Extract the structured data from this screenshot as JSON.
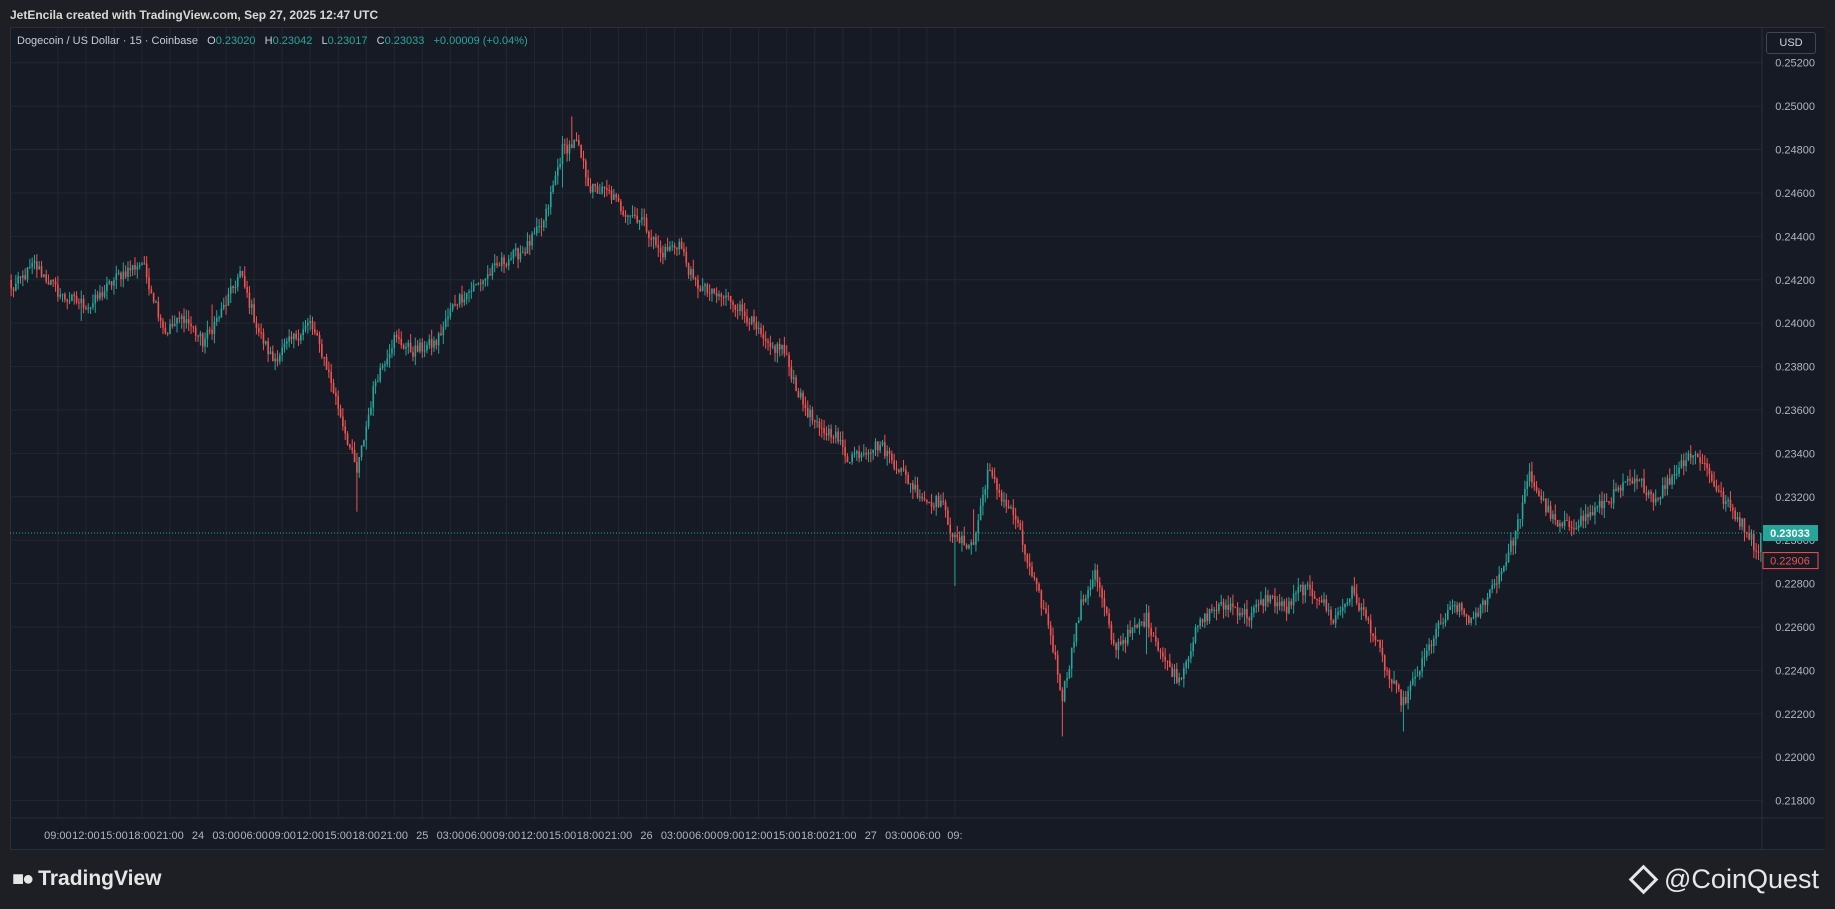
{
  "header": {
    "credit": "JetEncila created with TradingView.com, Sep 27, 2025 12:47 UTC"
  },
  "legend": {
    "symbol": "Dogecoin / US Dollar · 15 · Coinbase",
    "open_label": "O",
    "open": "0.23020",
    "high_label": "H",
    "high": "0.23042",
    "low_label": "L",
    "low": "0.23017",
    "close_label": "C",
    "close": "0.23033",
    "change": "+0.00009 (+0.04%)"
  },
  "currency": "USD",
  "current_price_label": "0.23033",
  "prev_price_label": "0.22906",
  "footer": {
    "tradingview_logo": "TradingView",
    "watermark": "@CoinQuest"
  },
  "colors": {
    "up": "#26a69a",
    "down": "#ef5350",
    "background": "#161a25",
    "grid": "#232733",
    "text": "#b2b5be"
  },
  "chart_data": {
    "type": "candlestick",
    "interval": "15",
    "y_ticks": [
      "0.25200",
      "0.25000",
      "0.24800",
      "0.24600",
      "0.24400",
      "0.24200",
      "0.24000",
      "0.23800",
      "0.23600",
      "0.23400",
      "0.23200",
      "0.23000",
      "0.22800",
      "0.22600",
      "0.22400",
      "0.22200",
      "0.22000",
      "0.21800"
    ],
    "x_ticks": [
      "09:00",
      "12:00",
      "15:00",
      "18:00",
      "21:00",
      "24",
      "03:00",
      "06:00",
      "09:00",
      "12:00",
      "15:00",
      "18:00",
      "21:00",
      "25",
      "03:00",
      "06:00",
      "09:00",
      "12:00",
      "15:00",
      "18:00",
      "21:00",
      "26",
      "03:00",
      "06:00",
      "09:00",
      "12:00",
      "15:00",
      "18:00",
      "21:00",
      "27",
      "03:00",
      "06:00",
      "09:"
    ],
    "ylim": [
      0.2172,
      0.2536
    ],
    "current_price": 0.23033,
    "prev_price": 0.22906,
    "anchors": [
      [
        0,
        0.2415
      ],
      [
        10,
        0.2427
      ],
      [
        22,
        0.2412
      ],
      [
        34,
        0.2408
      ],
      [
        46,
        0.2422
      ],
      [
        56,
        0.2428
      ],
      [
        66,
        0.2396
      ],
      [
        74,
        0.2403
      ],
      [
        82,
        0.2391
      ],
      [
        90,
        0.2405
      ],
      [
        98,
        0.2423
      ],
      [
        106,
        0.2396
      ],
      [
        112,
        0.2383
      ],
      [
        120,
        0.2392
      ],
      [
        128,
        0.24
      ],
      [
        134,
        0.2384
      ],
      [
        142,
        0.2354
      ],
      [
        148,
        0.2331
      ],
      [
        156,
        0.2374
      ],
      [
        164,
        0.2393
      ],
      [
        172,
        0.2387
      ],
      [
        182,
        0.2391
      ],
      [
        190,
        0.241
      ],
      [
        200,
        0.2418
      ],
      [
        210,
        0.2428
      ],
      [
        220,
        0.2434
      ],
      [
        228,
        0.2446
      ],
      [
        236,
        0.248
      ],
      [
        242,
        0.2483
      ],
      [
        248,
        0.2462
      ],
      [
        256,
        0.246
      ],
      [
        262,
        0.2452
      ],
      [
        270,
        0.2448
      ],
      [
        278,
        0.2432
      ],
      [
        286,
        0.2437
      ],
      [
        292,
        0.2419
      ],
      [
        300,
        0.2413
      ],
      [
        308,
        0.2411
      ],
      [
        316,
        0.2402
      ],
      [
        324,
        0.2388
      ],
      [
        330,
        0.2389
      ],
      [
        338,
        0.2365
      ],
      [
        346,
        0.235
      ],
      [
        352,
        0.235
      ],
      [
        358,
        0.2338
      ],
      [
        366,
        0.2342
      ],
      [
        372,
        0.2344
      ],
      [
        378,
        0.2336
      ],
      [
        386,
        0.2325
      ],
      [
        392,
        0.2318
      ],
      [
        398,
        0.2318
      ],
      [
        404,
        0.23
      ],
      [
        412,
        0.2298
      ],
      [
        418,
        0.2332
      ],
      [
        424,
        0.232
      ],
      [
        430,
        0.231
      ],
      [
        436,
        0.2286
      ],
      [
        444,
        0.2262
      ],
      [
        450,
        0.2228
      ],
      [
        458,
        0.227
      ],
      [
        464,
        0.2285
      ],
      [
        472,
        0.2251
      ],
      [
        478,
        0.2256
      ],
      [
        486,
        0.2264
      ],
      [
        494,
        0.2244
      ],
      [
        500,
        0.2236
      ],
      [
        508,
        0.226
      ],
      [
        514,
        0.2268
      ],
      [
        522,
        0.227
      ],
      [
        530,
        0.2265
      ],
      [
        538,
        0.2274
      ],
      [
        546,
        0.2268
      ],
      [
        552,
        0.2278
      ],
      [
        560,
        0.2274
      ],
      [
        566,
        0.2263
      ],
      [
        574,
        0.2276
      ],
      [
        582,
        0.226
      ],
      [
        590,
        0.2236
      ],
      [
        596,
        0.2225
      ],
      [
        604,
        0.2243
      ],
      [
        610,
        0.2258
      ],
      [
        618,
        0.227
      ],
      [
        626,
        0.2262
      ],
      [
        632,
        0.2275
      ],
      [
        638,
        0.2286
      ],
      [
        644,
        0.2303
      ],
      [
        650,
        0.233
      ],
      [
        656,
        0.2317
      ],
      [
        662,
        0.2306
      ],
      [
        668,
        0.2307
      ],
      [
        676,
        0.2312
      ],
      [
        684,
        0.2319
      ],
      [
        692,
        0.2326
      ],
      [
        698,
        0.2326
      ],
      [
        704,
        0.2319
      ],
      [
        710,
        0.2328
      ],
      [
        718,
        0.234
      ],
      [
        724,
        0.2337
      ],
      [
        732,
        0.232
      ],
      [
        738,
        0.2312
      ],
      [
        744,
        0.2303
      ],
      [
        749,
        0.2291
      ]
    ]
  }
}
